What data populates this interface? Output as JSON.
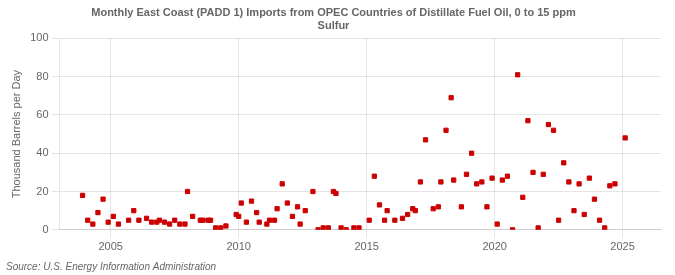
{
  "chart_data": {
    "type": "scatter",
    "title": "Monthly East Coast (PADD 1) Imports from OPEC Countries of Distillate Fuel Oil, 0 to 15 ppm\nSulfur",
    "ylabel": "Thousand Barrels per Day",
    "annotations": [
      "Source: U.S. Energy Information Administration"
    ],
    "color": "#cc0000",
    "marker": "square",
    "grid": true,
    "xlim": [
      2003.0,
      2026.5
    ],
    "ylim": [
      0,
      100
    ],
    "xticks": [
      2005,
      2010,
      2015,
      2020,
      2025
    ],
    "yticks": [
      0,
      20,
      40,
      60,
      80,
      100
    ],
    "x": [
      2003.9,
      2004.1,
      2004.3,
      2004.5,
      2004.7,
      2004.9,
      2005.1,
      2005.3,
      2005.7,
      2005.9,
      2006.1,
      2006.4,
      2006.6,
      2006.8,
      2006.9,
      2007.1,
      2007.3,
      2007.5,
      2007.7,
      2007.9,
      2008.0,
      2008.2,
      2008.5,
      2008.6,
      2008.8,
      2008.9,
      2009.1,
      2009.3,
      2009.5,
      2009.9,
      2010.0,
      2010.1,
      2010.3,
      2010.5,
      2010.7,
      2010.8,
      2011.1,
      2011.2,
      2011.4,
      2011.5,
      2011.7,
      2011.9,
      2012.1,
      2012.3,
      2012.4,
      2012.6,
      2012.9,
      2013.1,
      2013.3,
      2013.5,
      2013.7,
      2013.8,
      2014.0,
      2014.2,
      2014.5,
      2014.7,
      2015.1,
      2015.3,
      2015.5,
      2015.7,
      2015.8,
      2016.1,
      2016.4,
      2016.6,
      2016.8,
      2016.9,
      2017.1,
      2017.3,
      2017.6,
      2017.8,
      2017.9,
      2018.1,
      2018.3,
      2018.4,
      2018.7,
      2018.9,
      2019.1,
      2019.3,
      2019.5,
      2019.7,
      2019.9,
      2020.1,
      2020.3,
      2020.5,
      2020.7,
      2020.9,
      2021.1,
      2021.3,
      2021.5,
      2021.7,
      2021.9,
      2022.1,
      2022.3,
      2022.5,
      2022.7,
      2022.9,
      2023.1,
      2023.3,
      2023.5,
      2023.7,
      2023.9,
      2024.1,
      2024.3,
      2024.5,
      2024.7,
      2025.1
    ],
    "values": [
      18,
      5,
      3,
      9,
      16,
      4,
      7,
      3,
      5,
      10,
      5,
      6,
      4,
      4,
      5,
      4,
      3,
      5,
      3,
      3,
      20,
      7,
      5,
      5,
      5,
      5,
      1,
      1,
      2,
      8,
      7,
      14,
      4,
      15,
      9,
      4,
      3,
      5,
      5,
      11,
      24,
      14,
      7,
      12,
      3,
      10,
      20,
      0,
      1,
      1,
      20,
      19,
      1,
      0,
      1,
      1,
      5,
      28,
      13,
      5,
      10,
      5,
      6,
      8,
      11,
      10,
      25,
      47,
      11,
      12,
      25,
      52,
      69,
      26,
      12,
      29,
      40,
      24,
      25,
      12,
      27,
      3,
      26,
      28,
      0,
      81,
      17,
      57,
      30,
      1,
      29,
      55,
      52,
      5,
      35,
      25,
      10,
      24,
      8,
      27,
      16,
      5,
      1,
      23,
      24,
      48
    ]
  }
}
